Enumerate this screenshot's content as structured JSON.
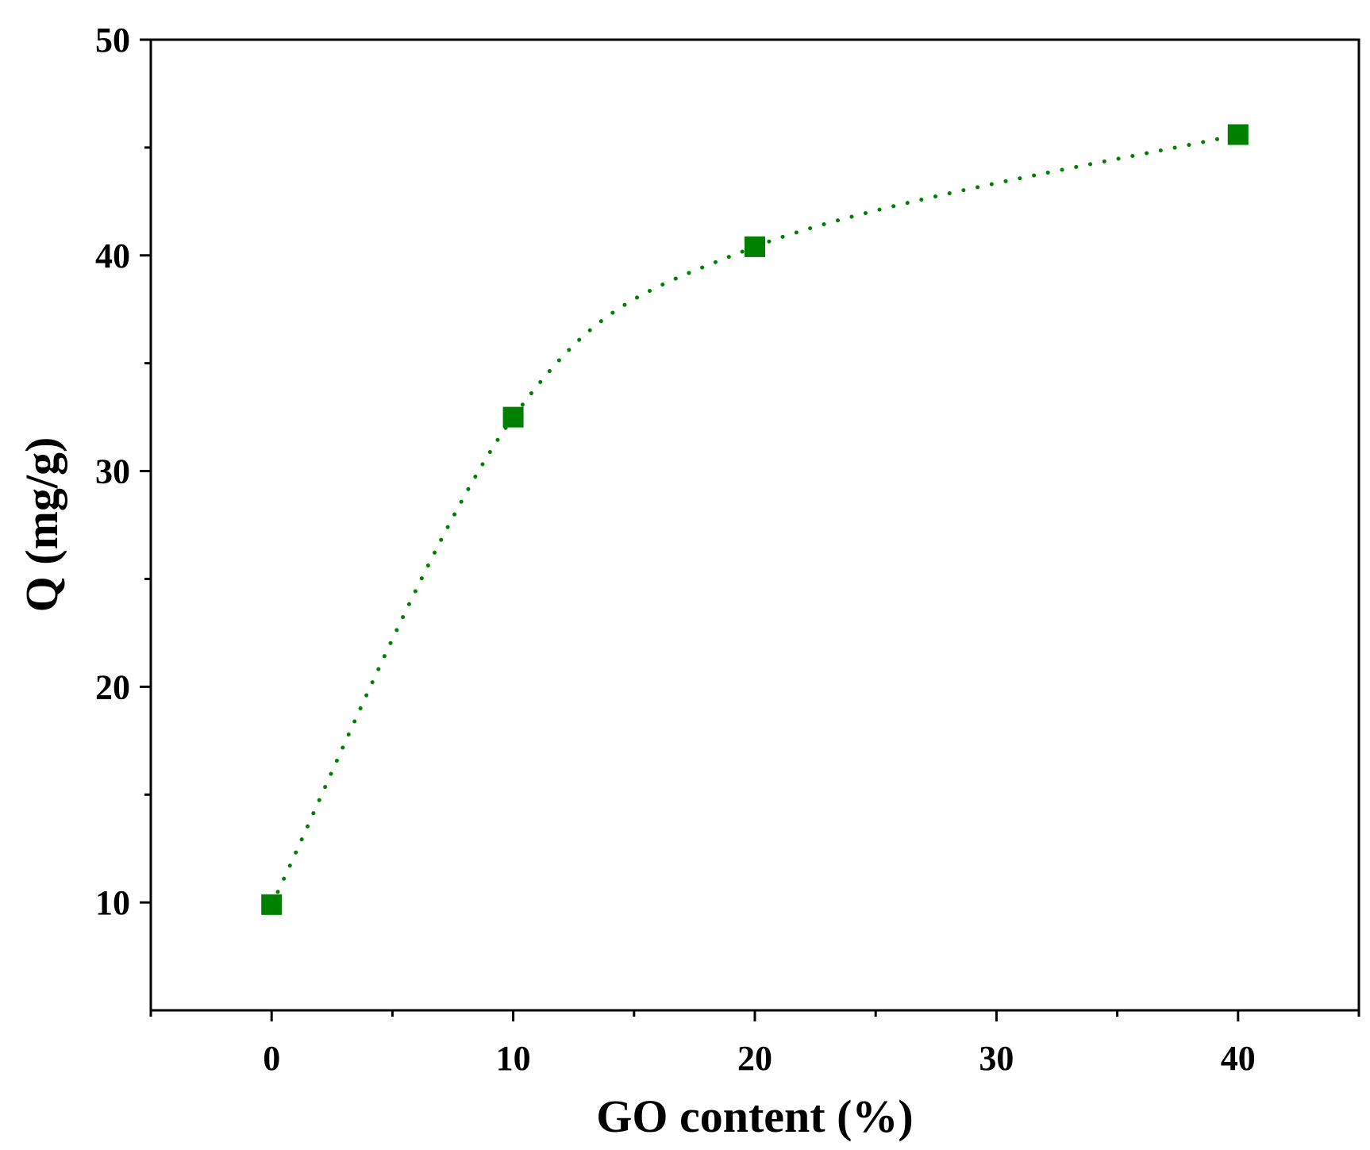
{
  "chart_data": {
    "type": "scatter",
    "title": "",
    "xlabel": "GO content (%)",
    "ylabel": "Q (mg/g)",
    "xlim": [
      -5,
      45
    ],
    "ylim": [
      5,
      50
    ],
    "x_ticks": [
      0,
      10,
      20,
      30,
      40
    ],
    "x_minor_ticks": [
      -5,
      5,
      15,
      25,
      35,
      45
    ],
    "y_ticks": [
      10,
      20,
      30,
      40,
      50
    ],
    "y_minor_ticks": [
      15,
      25,
      35,
      45
    ],
    "grid": false,
    "legend": "none",
    "series": [
      {
        "x": [
          0,
          10,
          20,
          40
        ],
        "y": [
          9.9,
          32.5,
          40.4,
          45.6
        ],
        "marker": "square",
        "color": "#008000",
        "line_style": "dotted",
        "line": "smooth"
      }
    ]
  }
}
